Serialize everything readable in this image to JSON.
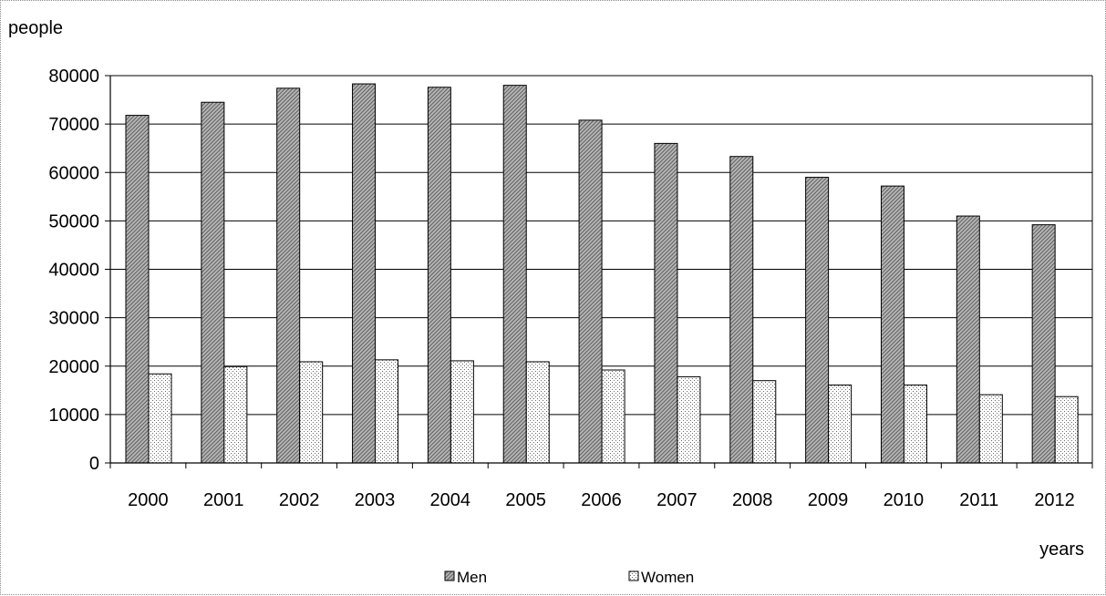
{
  "chart_data": {
    "type": "bar",
    "ylabel": "people",
    "xlabel": "years",
    "ylim": [
      0,
      80000
    ],
    "yticks": [
      0,
      10000,
      20000,
      30000,
      40000,
      50000,
      60000,
      70000,
      80000
    ],
    "categories": [
      "2000",
      "2001",
      "2002",
      "2003",
      "2004",
      "2005",
      "2006",
      "2007",
      "2008",
      "2009",
      "2010",
      "2011",
      "2012"
    ],
    "series": [
      {
        "name": "Men",
        "values": [
          71800,
          74500,
          77400,
          78300,
          77600,
          78000,
          70800,
          66000,
          63300,
          59000,
          57200,
          51000,
          49200
        ]
      },
      {
        "name": "Women",
        "values": [
          18400,
          19900,
          20900,
          21300,
          21100,
          20900,
          19200,
          17800,
          17000,
          16100,
          16100,
          14100,
          13700
        ]
      }
    ],
    "grid": true,
    "legend_position": "bottom"
  }
}
